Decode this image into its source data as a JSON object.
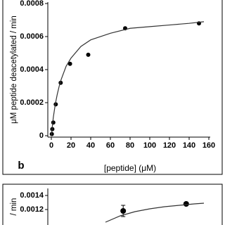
{
  "chart_data": [
    {
      "type": "scatter",
      "annotation": "b",
      "ylabel": "μM peptide deacetylated / min",
      "xlabel": "[peptide] (μM)",
      "xlim": [
        0,
        160
      ],
      "xticks": [
        0,
        20,
        40,
        60,
        80,
        100,
        120,
        140,
        160
      ],
      "ylim": [
        0,
        0.0008
      ],
      "yticks": [
        0,
        0.0002,
        0.0004,
        0.0006,
        0.0008
      ],
      "series": [
        {
          "mode": "marker",
          "color": "#000000",
          "x": [
            0.5,
            1,
            2,
            4.5,
            9.5,
            19,
            37.5,
            75,
            150
          ],
          "values": [
            1e-05,
            4e-05,
            8e-05,
            0.00019,
            0.00032,
            0.000435,
            0.00049,
            0.00065,
            0.00068
          ]
        },
        {
          "mode": "line",
          "color": "#333333",
          "x": [
            0,
            2,
            4,
            6,
            8,
            10,
            15,
            20,
            30,
            40,
            60,
            80,
            100,
            120,
            140,
            155
          ],
          "values": [
            0,
            0.00011,
            0.00019,
            0.00025,
            0.0003,
            0.00034,
            0.00042,
            0.00047,
            0.00054,
            0.00058,
            0.00062,
            0.00065,
            0.00066,
            0.00067,
            0.00068,
            0.00069
          ]
        }
      ]
    },
    {
      "type": "scatter",
      "ylabel": "/ min",
      "xlim": [
        0,
        160
      ],
      "ylim": [
        0.001,
        0.00148
      ],
      "yticks": [
        0.0012,
        0.0014
      ],
      "series": [
        {
          "mode": "marker",
          "color": "#000000",
          "x": [
            73,
            137
          ],
          "values": [
            0.00118,
            0.00128
          ],
          "errors": [
            8e-05,
            2e-05
          ]
        },
        {
          "mode": "line",
          "color": "#333333",
          "x": [
            55,
            70,
            85,
            100,
            115,
            130,
            145,
            155
          ],
          "values": [
            0.00102,
            0.00111,
            0.00117,
            0.00121,
            0.00124,
            0.00126,
            0.00128,
            0.00129
          ]
        }
      ]
    }
  ]
}
